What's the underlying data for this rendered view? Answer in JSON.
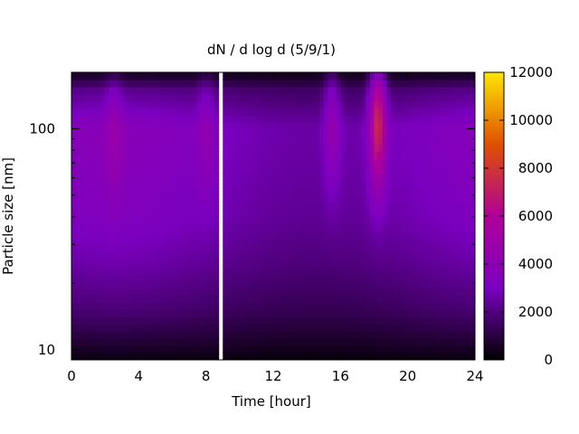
{
  "chart_data": {
    "type": "heatmap",
    "title": "dN / d log d (5/9/1)",
    "xlabel": "Time [hour]",
    "ylabel": "Particle size [nm]",
    "xlim": [
      0,
      24
    ],
    "ylim": [
      9,
      180
    ],
    "y_scale": "log",
    "x_ticks": [
      0,
      4,
      8,
      12,
      16,
      20,
      24
    ],
    "x_tick_labels": [
      "0",
      "4",
      "8",
      "12",
      "16",
      "20",
      "24"
    ],
    "y_ticks": [
      10,
      100
    ],
    "y_tick_labels": [
      "10",
      "100"
    ],
    "colorbar": {
      "min": 0,
      "max": 12000,
      "ticks": [
        0,
        2000,
        4000,
        6000,
        8000,
        10000,
        12000
      ],
      "tick_labels": [
        "0",
        "2000",
        "4000",
        "6000",
        "8000",
        "10000",
        "12000"
      ],
      "colormap": [
        "#000000",
        "#7b00c0",
        "#b0009a",
        "#e05000",
        "#ffe600"
      ]
    },
    "data_gap_hours": [
      8.7,
      9.1
    ],
    "baseline_profile": {
      "diameter_nm": [
        9,
        10,
        15,
        25,
        40,
        60,
        100,
        150,
        180
      ],
      "concentration": [
        200,
        600,
        1800,
        2700,
        3300,
        3500,
        3700,
        2200,
        400
      ]
    },
    "events": [
      {
        "time_hour": 18.2,
        "peak_diameter_nm": 110,
        "peak_concentration": 8200
      },
      {
        "time_hour": 15.5,
        "peak_diameter_nm": 110,
        "peak_concentration": 5200
      },
      {
        "time_hour": 2.5,
        "peak_diameter_nm": 105,
        "peak_concentration": 4600
      },
      {
        "time_hour": 8.0,
        "peak_diameter_nm": 100,
        "peak_concentration": 4800
      }
    ],
    "grid": false,
    "legend": "colorbar-right"
  }
}
